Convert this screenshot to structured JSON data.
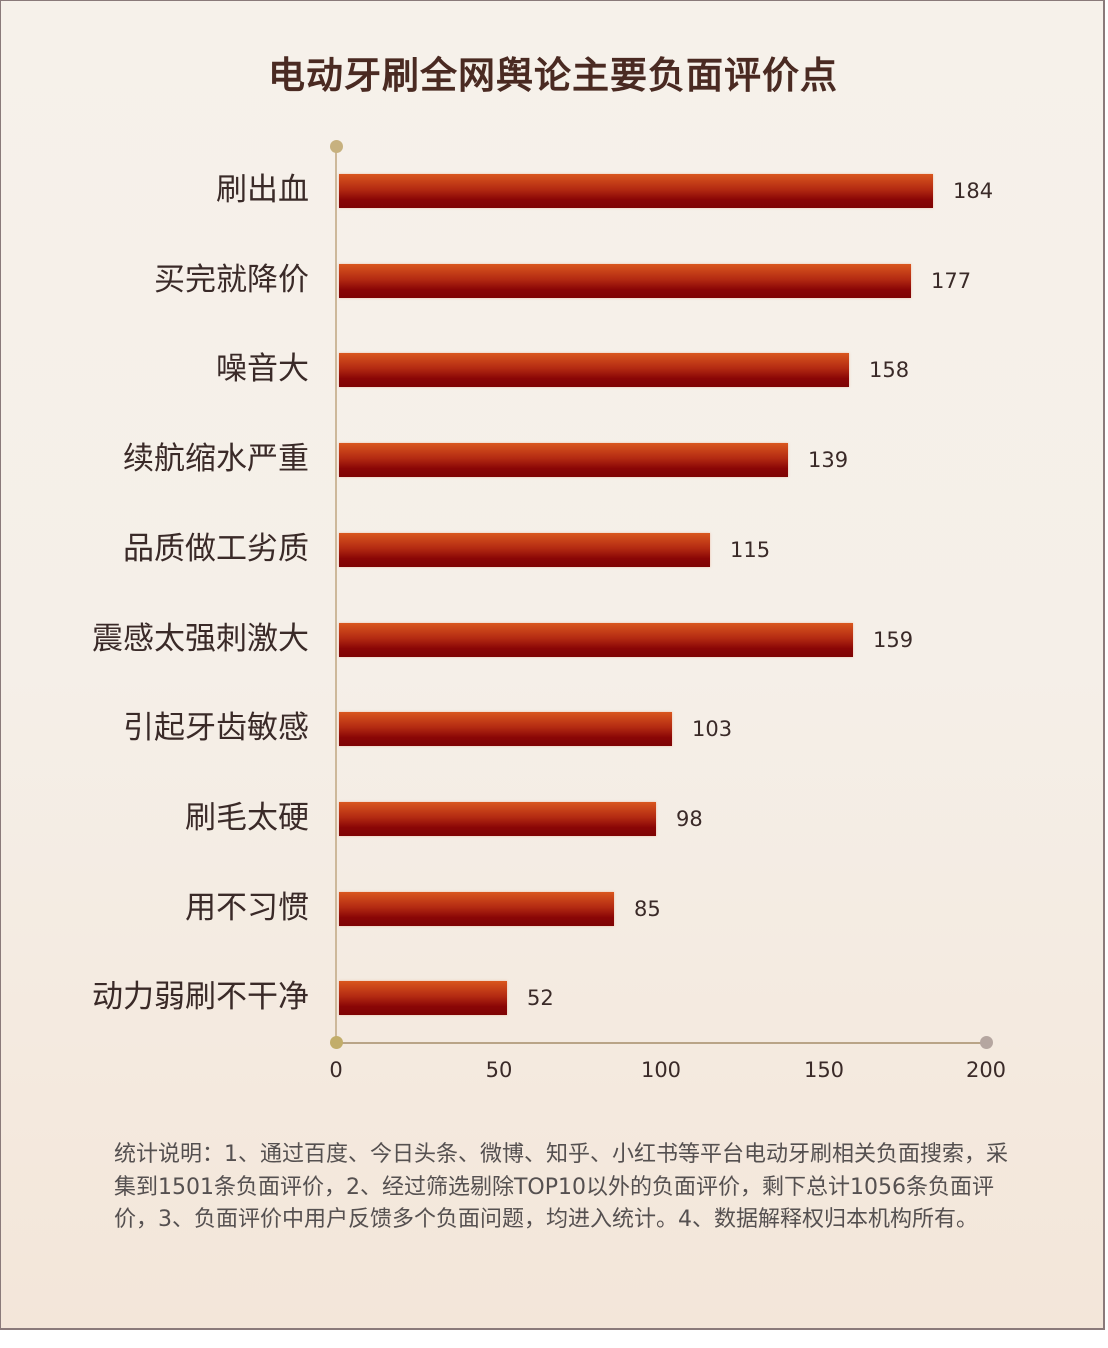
{
  "title": "电动牙刷全网舆论主要负面评价点",
  "chart_data": {
    "type": "bar",
    "orientation": "horizontal",
    "title": "电动牙刷全网舆论主要负面评价点",
    "categories": [
      "刷出血",
      "买完就降价",
      "噪音大",
      "续航缩水严重",
      "品质做工劣质",
      "震感太强刺激大",
      "引起牙齿敏感",
      "刷毛太硬",
      "用不习惯",
      "动力弱刷不干净"
    ],
    "values": [
      184,
      177,
      158,
      139,
      115,
      159,
      103,
      98,
      85,
      52
    ],
    "xlabel": "",
    "ylabel": "",
    "xlim": [
      0,
      200
    ],
    "xticks": [
      "0",
      "50",
      "100",
      "150",
      "200"
    ],
    "grid": false,
    "legend": null,
    "bar_color": "#9a1408"
  },
  "bars": [
    {
      "label": "刷出血",
      "value": "184"
    },
    {
      "label": "买完就降价",
      "value": "177"
    },
    {
      "label": "噪音大",
      "value": "158"
    },
    {
      "label": "续航缩水严重",
      "value": "139"
    },
    {
      "label": "品质做工劣质",
      "value": "115"
    },
    {
      "label": "震感太强刺激大",
      "value": "159"
    },
    {
      "label": "引起牙齿敏感",
      "value": "103"
    },
    {
      "label": "刷毛太硬",
      "value": "98"
    },
    {
      "label": "用不习惯",
      "value": "85"
    },
    {
      "label": "动力弱刷不干净",
      "value": "52"
    }
  ],
  "axis": {
    "ticks": [
      "0",
      "50",
      "100",
      "150",
      "200"
    ]
  },
  "note": "统计说明：1、通过百度、今日头条、微博、知乎、小红书等平台电动牙刷相关负面搜索，采集到1501条负面评价，2、经过筛选剔除TOP10以外的负面评价，剩下总计1056条负面评价，3、负面评价中用户反馈多个负面问题，均进入统计。4、数据解释权归本机构所有。"
}
